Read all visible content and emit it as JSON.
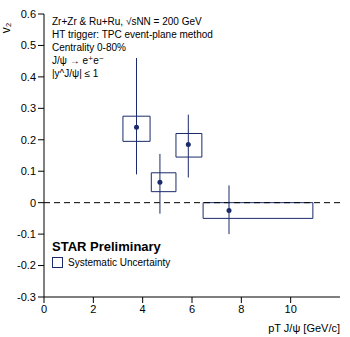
{
  "chart_data": {
    "type": "scatter",
    "title": "Zr+Zr & Ru+Ru, √sNN = 200 GeV",
    "subtitle": "HT trigger: TPC event-plane method",
    "annotations": [
      "Centrality 0-80%",
      "J/ψ → e⁺e⁻",
      "|y^J/ψ| ≤ 1",
      "STAR Preliminary"
    ],
    "x_label": "pT J/ψ [GeV/c]",
    "y_label": "v₂",
    "series": [
      {
        "name": "Systematic Uncertainty",
        "color": "#1b2a6b",
        "marker": "circle",
        "x": [
          3.75,
          4.7,
          5.85,
          7.5
        ],
        "values": [
          0.24,
          0.065,
          0.185,
          -0.025
        ],
        "err_minus": [
          0.15,
          0.1,
          0.105,
          0.075
        ],
        "err_plus": [
          0.22,
          0.09,
          0.095,
          0.08
        ],
        "x_low": [
          3.2,
          4.35,
          5.35,
          6.45
        ],
        "x_high": [
          4.3,
          5.35,
          6.4,
          10.9
        ],
        "sys_low": [
          0.195,
          0.035,
          0.145,
          -0.05
        ],
        "sys_high": [
          0.275,
          0.095,
          0.22,
          0
        ]
      }
    ],
    "xlim": [
      0,
      12
    ],
    "xticks": [
      0,
      2,
      4,
      6,
      8,
      10
    ],
    "ylim": [
      -0.3,
      0.6
    ],
    "yticks": [
      -0.3,
      -0.2,
      -0.1,
      0,
      0.1,
      0.2,
      0.3,
      0.4,
      0.5,
      0.6
    ],
    "hline": 0,
    "legend": "lower left"
  }
}
